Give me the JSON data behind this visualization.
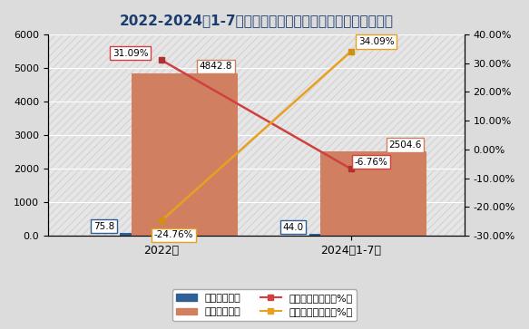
{
  "title": "2022-2024年1-7月我国四氧化三钴进出口量及同比增长情况",
  "categories": [
    "2022年",
    "2024年1-7月"
  ],
  "import_volume": [
    75.8,
    44.0
  ],
  "export_volume": [
    4842.8,
    2504.6
  ],
  "import_yoy": [
    31.09,
    -6.76
  ],
  "export_yoy": [
    -24.76,
    34.09
  ],
  "import_bar_color": "#2e6096",
  "export_bar_color": "#d08060",
  "import_line_color": "#d04040",
  "export_line_color": "#e8a020",
  "import_line_marker_color": "#b03030",
  "export_line_marker_color": "#d09010",
  "left_ylim": [
    0,
    6000
  ],
  "right_ylim": [
    -30,
    40
  ],
  "left_yticks": [
    0,
    1000,
    2000,
    3000,
    4000,
    5000,
    6000
  ],
  "right_yticks": [
    -30,
    -20,
    -10,
    0,
    10,
    20,
    30,
    40
  ],
  "right_ytick_labels": [
    "-30.00%",
    "-20.00%",
    "-10.00%",
    "0.00%",
    "10.00%",
    "20.00%",
    "30.00%",
    "40.00%"
  ],
  "background_color": "#dcdcdc",
  "plot_bg_color": "#dcdcdc",
  "title_color": "#1a3c6e",
  "title_fontsize": 11,
  "legend_labels": [
    "进口量（吨）",
    "出口量（吨）",
    "进口量同比增长（%）",
    "出口量同比增长（%）"
  ],
  "import_ann_border": "#2e6096",
  "export_ann_border": "#d08060",
  "import_yoy_ann_border": "#d04040",
  "export_yoy_ann_border": "#e8a020"
}
